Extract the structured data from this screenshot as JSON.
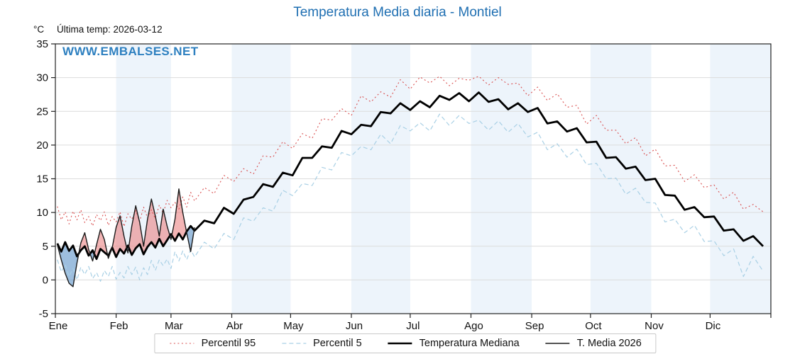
{
  "title": "Temperatura Media diaria - Montiel",
  "y_unit_label": "°C",
  "last_temp_label": "Última temp: 2026-03-12",
  "watermark": "WWW.EMBALSES.NET",
  "colors": {
    "title": "#1f6fb2",
    "watermark": "#2e80c0",
    "spine": "#222222",
    "grid": "#dcdcdc",
    "band": "#edf4fb",
    "tick_label": "#111111",
    "fill_above": "rgba(233,120,120,0.55)",
    "fill_below": "rgba(105,155,205,0.65)"
  },
  "chart_data": {
    "type": "line",
    "title": "Temperatura Media diaria - Montiel",
    "ylabel": "°C",
    "ylim": [
      -5,
      35
    ],
    "yticks": [
      -5,
      0,
      5,
      10,
      15,
      20,
      25,
      30,
      35
    ],
    "xlim_days": [
      0,
      365
    ],
    "grid": true,
    "legend_position": "bottom",
    "month_labels": [
      "Ene",
      "Feb",
      "Mar",
      "Abr",
      "May",
      "Jun",
      "Jul",
      "Ago",
      "Sep",
      "Oct",
      "Nov",
      "Dic"
    ],
    "month_boundaries": [
      0,
      31,
      59,
      90,
      120,
      151,
      181,
      212,
      243,
      273,
      304,
      334,
      365
    ],
    "fill_between": {
      "series_a": "T. Media 2026",
      "series_b": "Temperatura Mediana"
    },
    "series": [
      {
        "name": "Percentil 95",
        "style": "dotted",
        "color": "#d94f4f",
        "width": 1.1,
        "x": [
          1,
          3,
          5,
          7,
          9,
          11,
          13,
          15,
          17,
          19,
          21,
          23,
          25,
          27,
          29,
          31,
          33,
          35,
          37,
          39,
          41,
          43,
          45,
          47,
          49,
          51,
          53,
          55,
          57,
          59,
          61,
          63,
          65,
          67,
          69,
          71,
          76,
          81,
          86,
          91,
          96,
          101,
          106,
          111,
          116,
          121,
          126,
          131,
          136,
          141,
          146,
          151,
          156,
          161,
          166,
          171,
          176,
          181,
          186,
          191,
          196,
          201,
          206,
          211,
          216,
          221,
          226,
          231,
          236,
          241,
          246,
          251,
          256,
          261,
          266,
          271,
          276,
          281,
          286,
          291,
          296,
          301,
          306,
          311,
          316,
          321,
          326,
          331,
          336,
          341,
          346,
          351,
          356,
          361
        ],
        "y": [
          10.9,
          8.9,
          10.1,
          8.3,
          10.2,
          8.9,
          10.4,
          8.5,
          9.4,
          8.0,
          9.7,
          8.8,
          10.1,
          8.1,
          9.4,
          8.6,
          10.1,
          7.9,
          9.8,
          9.0,
          10.3,
          8.7,
          10.8,
          9.2,
          10.4,
          9.1,
          11.1,
          9.9,
          11.8,
          10.7,
          11.5,
          10.5,
          12.3,
          10.8,
          13.0,
          11.7,
          13.7,
          12.8,
          15.5,
          14.6,
          16.5,
          15.7,
          18.4,
          18.2,
          20.5,
          19.5,
          21.7,
          21.0,
          23.9,
          23.7,
          25.4,
          24.4,
          27.3,
          26.4,
          27.9,
          27.1,
          29.7,
          28.3,
          30.1,
          29.2,
          30.2,
          28.8,
          29.9,
          29.6,
          30.2,
          28.9,
          30.0,
          29.0,
          29.2,
          27.3,
          28.6,
          26.6,
          27.6,
          25.6,
          25.9,
          23.1,
          24.4,
          22.2,
          22.2,
          20.2,
          21.1,
          18.4,
          19.4,
          16.9,
          17.0,
          14.6,
          15.6,
          13.7,
          14.1,
          12.0,
          13.0,
          10.5,
          11.2,
          10.1
        ]
      },
      {
        "name": "Percentil 5",
        "style": "dashed",
        "color": "#a9d0e5",
        "width": 1.2,
        "x": [
          1,
          3,
          5,
          7,
          9,
          11,
          13,
          15,
          17,
          19,
          21,
          23,
          25,
          27,
          29,
          31,
          33,
          35,
          37,
          39,
          41,
          43,
          45,
          47,
          49,
          51,
          53,
          55,
          57,
          59,
          61,
          63,
          65,
          67,
          69,
          71,
          76,
          81,
          86,
          91,
          96,
          101,
          106,
          111,
          116,
          121,
          126,
          131,
          136,
          141,
          146,
          151,
          156,
          161,
          166,
          171,
          176,
          181,
          186,
          191,
          196,
          201,
          206,
          211,
          216,
          221,
          226,
          231,
          236,
          241,
          246,
          251,
          256,
          261,
          266,
          271,
          276,
          281,
          286,
          291,
          296,
          301,
          306,
          311,
          316,
          321,
          326,
          331,
          336,
          341,
          346,
          351,
          356,
          361
        ],
        "y": [
          3.0,
          1.2,
          2.3,
          0.5,
          1.7,
          0.0,
          1.9,
          0.8,
          2.0,
          0.2,
          1.1,
          -0.2,
          1.4,
          0.5,
          2.0,
          0.1,
          1.1,
          0.3,
          2.0,
          0.8,
          1.9,
          0.0,
          1.8,
          0.8,
          2.9,
          1.4,
          3.0,
          2.1,
          3.1,
          1.7,
          4.2,
          2.8,
          4.3,
          3.0,
          4.5,
          3.4,
          5.6,
          4.6,
          6.9,
          6.0,
          9.2,
          8.7,
          10.7,
          10.2,
          13.3,
          12.5,
          14.3,
          14.0,
          16.7,
          16.3,
          18.9,
          18.4,
          19.8,
          19.3,
          21.6,
          20.2,
          22.9,
          22.1,
          23.3,
          22.1,
          24.6,
          22.9,
          24.4,
          23.2,
          23.7,
          22.2,
          23.6,
          21.9,
          23.2,
          21.2,
          21.9,
          19.3,
          20.2,
          18.2,
          19.4,
          17.1,
          17.3,
          15.0,
          15.1,
          12.7,
          13.6,
          11.5,
          11.4,
          8.6,
          9.0,
          7.0,
          8.1,
          5.7,
          5.8,
          3.6,
          4.6,
          0.5,
          3.5,
          1.3
        ]
      },
      {
        "name": "Temperatura Mediana",
        "style": "solid",
        "color": "#000000",
        "width": 2.8,
        "x": [
          1,
          3,
          5,
          7,
          9,
          11,
          13,
          15,
          17,
          19,
          21,
          23,
          25,
          27,
          29,
          31,
          33,
          35,
          37,
          39,
          41,
          43,
          45,
          47,
          49,
          51,
          53,
          55,
          57,
          59,
          61,
          63,
          65,
          67,
          69,
          71,
          76,
          81,
          86,
          91,
          96,
          101,
          106,
          111,
          116,
          121,
          126,
          131,
          136,
          141,
          146,
          151,
          156,
          161,
          166,
          171,
          176,
          181,
          186,
          191,
          196,
          201,
          206,
          211,
          216,
          221,
          226,
          231,
          236,
          241,
          246,
          251,
          256,
          261,
          266,
          271,
          276,
          281,
          286,
          291,
          296,
          301,
          306,
          311,
          316,
          321,
          326,
          331,
          336,
          341,
          346,
          351,
          356,
          361
        ],
        "y": [
          5.4,
          4.2,
          5.6,
          4.3,
          5.1,
          3.5,
          4.4,
          5.0,
          3.6,
          4.4,
          3.1,
          4.6,
          4.1,
          3.6,
          4.8,
          3.4,
          4.6,
          3.9,
          5.1,
          3.7,
          4.7,
          5.3,
          3.8,
          4.9,
          5.6,
          4.8,
          6.1,
          5.0,
          5.9,
          6.8,
          5.8,
          6.9,
          6.0,
          7.2,
          8.0,
          7.3,
          8.8,
          8.4,
          10.7,
          9.8,
          11.9,
          12.3,
          14.2,
          13.8,
          15.9,
          15.5,
          18.1,
          18.1,
          19.8,
          19.6,
          22.1,
          21.6,
          23.0,
          22.8,
          24.9,
          24.7,
          26.2,
          25.2,
          26.5,
          25.6,
          27.3,
          26.7,
          27.7,
          26.5,
          27.8,
          26.4,
          26.8,
          25.3,
          26.2,
          24.9,
          25.5,
          23.2,
          23.5,
          22.0,
          22.5,
          20.4,
          20.5,
          18.1,
          18.2,
          16.5,
          16.8,
          14.8,
          15.0,
          12.6,
          12.5,
          10.4,
          10.8,
          9.3,
          9.4,
          7.3,
          7.5,
          5.8,
          6.5,
          5.0
        ]
      },
      {
        "name": "T. Media 2026",
        "style": "solid",
        "color": "#1a1a1a",
        "width": 1.4,
        "x": [
          1,
          3,
          5,
          7,
          9,
          11,
          13,
          15,
          17,
          19,
          21,
          23,
          25,
          27,
          29,
          31,
          33,
          35,
          37,
          39,
          41,
          43,
          45,
          47,
          49,
          51,
          53,
          55,
          57,
          59,
          61,
          63,
          65,
          67,
          69,
          71
        ],
        "y": [
          5.2,
          3.0,
          1.0,
          -0.5,
          -1.0,
          2.5,
          5.5,
          7.0,
          4.5,
          2.8,
          5.2,
          7.5,
          6.0,
          3.2,
          4.8,
          7.8,
          9.5,
          6.5,
          4.0,
          8.0,
          11.0,
          8.5,
          5.0,
          9.0,
          12.0,
          9.5,
          6.5,
          10.5,
          8.0,
          6.0,
          9.0,
          13.5,
          10.0,
          7.0,
          4.2,
          7.8
        ]
      }
    ]
  },
  "legend": {
    "items": [
      "Percentil 95",
      "Percentil 5",
      "Temperatura Mediana",
      "T. Media 2026"
    ]
  }
}
